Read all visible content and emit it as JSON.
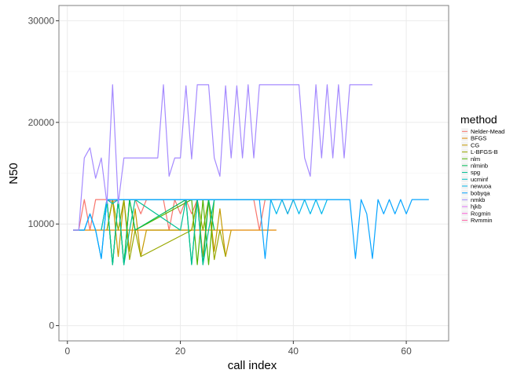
{
  "chart_data": {
    "type": "line",
    "title": "",
    "xlabel": "call index",
    "ylabel": "N50",
    "xlim": [
      -1.5,
      67.5
    ],
    "ylim": [
      -1500,
      31500
    ],
    "xticks": [
      0,
      20,
      40,
      60
    ],
    "yticks": [
      0,
      10000,
      20000,
      30000
    ],
    "grid": true,
    "legend": {
      "title": "method",
      "placement": "right"
    },
    "series": [
      {
        "name": "Nelder-Mead",
        "color": "#F8766D",
        "x": [
          1,
          2,
          3,
          4,
          5,
          6,
          7,
          8,
          9,
          10,
          11,
          12,
          13,
          14,
          15,
          16,
          17,
          18,
          19,
          20,
          21,
          22,
          23,
          24,
          25,
          26,
          27,
          28,
          29,
          30,
          31,
          32,
          33,
          34,
          35,
          36,
          37,
          38,
          39,
          40,
          41,
          42
        ],
        "y": [
          9400,
          9400,
          12400,
          9400,
          12400,
          12400,
          12400,
          12200,
          12400,
          12400,
          12400,
          12400,
          11000,
          12400,
          12400,
          12400,
          12400,
          9400,
          12400,
          11000,
          12400,
          11000,
          12400,
          12400,
          12400,
          12400,
          12400,
          12400,
          12400,
          12400,
          12400,
          12400,
          12400,
          9400,
          12400,
          12400,
          12400,
          12400,
          11000,
          12400,
          12400,
          12400
        ]
      },
      {
        "name": "BFGS",
        "color": "#E38900",
        "x": [
          1,
          2,
          3,
          4,
          5,
          6,
          7,
          8,
          9,
          10,
          11,
          12,
          13,
          14,
          15,
          16,
          17,
          18,
          19,
          20,
          21,
          22,
          23,
          24,
          25,
          26,
          27,
          28,
          29,
          30,
          31,
          32,
          33,
          34,
          35,
          36,
          37
        ],
        "y": [
          9400,
          9400,
          9400,
          9400,
          9400,
          9400,
          9400,
          9400,
          9400,
          9400,
          9400,
          9400,
          9400,
          9400,
          9400,
          9400,
          9400,
          9400,
          9400,
          9400,
          9400,
          9400,
          9400,
          9400,
          9400,
          9400,
          9400,
          9400,
          9400,
          9400,
          9400,
          9400,
          9400,
          9400,
          9400,
          9400,
          9400
        ]
      },
      {
        "name": "CG",
        "color": "#C49A00",
        "x": [
          7,
          8,
          9,
          10,
          11,
          12,
          13,
          14,
          22,
          23,
          24,
          25,
          26,
          27,
          28,
          29
        ],
        "y": [
          9400,
          12400,
          6800,
          12400,
          7300,
          11500,
          6800,
          9400,
          9400,
          12400,
          6800,
          12400,
          7300,
          11500,
          6800,
          9400
        ]
      },
      {
        "name": "L-BFGS-B",
        "color": "#99A800",
        "x": [
          7,
          8,
          9,
          10,
          11,
          12,
          13,
          22,
          23,
          24,
          25,
          26,
          27,
          28
        ],
        "y": [
          9400,
          12400,
          9400,
          12400,
          6500,
          9400,
          6800,
          9400,
          12400,
          9400,
          12400,
          6500,
          9400,
          6800
        ]
      },
      {
        "name": "nlm",
        "color": "#53B400",
        "x": [
          7,
          8,
          9,
          10,
          11,
          12,
          22,
          23,
          24,
          25,
          26
        ],
        "y": [
          12400,
          6000,
          12400,
          6000,
          12400,
          9400,
          12400,
          6000,
          12400,
          6000,
          12400
        ]
      },
      {
        "name": "nlminb",
        "color": "#00BC56",
        "x": [
          7,
          8,
          9,
          10,
          11,
          12,
          21,
          22,
          23,
          24,
          25,
          26
        ],
        "y": [
          12400,
          6000,
          12400,
          6000,
          12400,
          9400,
          12400,
          6000,
          12400,
          6000,
          12400,
          9400
        ]
      },
      {
        "name": "spg",
        "color": "#00C094",
        "x": [
          6,
          7,
          8,
          9,
          10,
          11,
          12,
          20,
          21,
          22,
          23,
          24,
          25,
          26
        ],
        "y": [
          9400,
          12400,
          6000,
          12400,
          6000,
          9400,
          12400,
          9400,
          12400,
          6000,
          12400,
          6000,
          9400,
          12400
        ]
      },
      {
        "name": "ucminf",
        "color": "#00BFC4",
        "x": [
          6,
          7,
          8,
          9,
          10,
          11,
          12,
          13,
          14,
          15,
          16,
          17,
          18,
          19,
          20,
          21,
          22,
          23,
          24,
          25,
          26,
          27,
          28,
          29,
          30,
          31,
          32,
          33,
          34,
          35,
          36,
          37
        ],
        "y": [
          9400,
          12400,
          12000,
          12400,
          12400,
          12400,
          12400,
          12400,
          12400,
          12400,
          12400,
          12400,
          12400,
          12400,
          12400,
          12400,
          12400,
          12400,
          12400,
          12400,
          12400,
          12400,
          12400,
          12400,
          12400,
          12400,
          12400,
          12400,
          12400,
          12400,
          12400,
          12400
        ]
      },
      {
        "name": "newuoa",
        "color": "#00B6EB",
        "x": [
          1,
          2,
          3,
          4,
          5,
          6,
          7,
          8,
          9,
          10,
          11,
          12,
          13,
          14,
          15,
          16,
          17,
          18,
          19,
          20,
          21,
          22,
          23,
          24,
          25,
          26,
          27,
          28,
          29,
          30,
          31,
          32,
          33,
          34,
          35,
          36,
          37,
          38,
          39,
          40,
          41,
          42,
          43,
          44,
          45,
          46,
          47,
          48,
          49,
          50
        ],
        "y": [
          9400,
          9400,
          9400,
          11000,
          9400,
          6600,
          12400,
          12400,
          12400,
          12400,
          12400,
          12400,
          12400,
          12400,
          12400,
          12400,
          12400,
          12400,
          12400,
          12400,
          12400,
          12400,
          12400,
          12400,
          12400,
          12400,
          12400,
          12400,
          12400,
          12400,
          12400,
          12400,
          12400,
          12400,
          12400,
          12400,
          11000,
          12400,
          11000,
          12400,
          11000,
          12400,
          11000,
          12400,
          11000,
          12400,
          12400,
          12400,
          12400,
          12400
        ]
      },
      {
        "name": "bobyqa",
        "color": "#06A4FF",
        "x": [
          1,
          2,
          3,
          4,
          5,
          6,
          7,
          8,
          9,
          10,
          11,
          12,
          13,
          14,
          15,
          16,
          17,
          18,
          19,
          20,
          21,
          22,
          23,
          24,
          25,
          26,
          27,
          28,
          29,
          30,
          31,
          32,
          33,
          34,
          35,
          36,
          37,
          38,
          39,
          40,
          41,
          42,
          43,
          44,
          45,
          46,
          47,
          48,
          49,
          50,
          51,
          52,
          53,
          54,
          55,
          56,
          57,
          58,
          59,
          60,
          61,
          62,
          63,
          64
        ],
        "y": [
          9400,
          9400,
          9400,
          11000,
          9400,
          6600,
          12400,
          12400,
          12400,
          12400,
          12400,
          12400,
          12400,
          12400,
          12400,
          12400,
          12400,
          12400,
          12400,
          12400,
          12400,
          12400,
          12400,
          12400,
          12400,
          12400,
          12400,
          12400,
          12400,
          12400,
          12400,
          12400,
          12400,
          12400,
          6600,
          12400,
          12400,
          12400,
          12400,
          12400,
          12400,
          12400,
          12400,
          12400,
          12400,
          12400,
          12400,
          12400,
          12400,
          12400,
          6600,
          12400,
          11000,
          6600,
          12400,
          11000,
          12400,
          11000,
          12400,
          11000,
          12400,
          12400,
          12400,
          12400
        ]
      },
      {
        "name": "nmkb",
        "color": "#A58AFF",
        "x": [
          1,
          2,
          3,
          4,
          5,
          6,
          7,
          8,
          9,
          10,
          11,
          12,
          13,
          14,
          15,
          16,
          17,
          18,
          19,
          20,
          21,
          22,
          23,
          24,
          25,
          26,
          27,
          28,
          29,
          30,
          31,
          32,
          33,
          34,
          35,
          36,
          37,
          38,
          39,
          40,
          41,
          42,
          43,
          44,
          45,
          46,
          47,
          48,
          49,
          50,
          51,
          52,
          53,
          54
        ],
        "y": [
          9400,
          9400,
          16500,
          17500,
          14500,
          16500,
          12000,
          23700,
          12000,
          16500,
          16500,
          16500,
          16500,
          16500,
          16500,
          16500,
          23700,
          14700,
          16500,
          16500,
          23600,
          16400,
          23700,
          23700,
          23700,
          16500,
          14700,
          23600,
          16500,
          23600,
          16500,
          23700,
          16500,
          23700,
          23700,
          23700,
          23700,
          23700,
          23700,
          23700,
          23700,
          16500,
          14700,
          23700,
          16500,
          23700,
          16500,
          23700,
          16500,
          23700,
          23700,
          23700,
          23700,
          23700
        ]
      },
      {
        "name": "hjkb",
        "color": "#DF70F8",
        "x": [],
        "y": []
      },
      {
        "name": "Rcgmin",
        "color": "#FB61D7",
        "x": [],
        "y": []
      },
      {
        "name": "Rvmmin",
        "color": "#FF66A8",
        "x": [],
        "y": []
      }
    ]
  }
}
